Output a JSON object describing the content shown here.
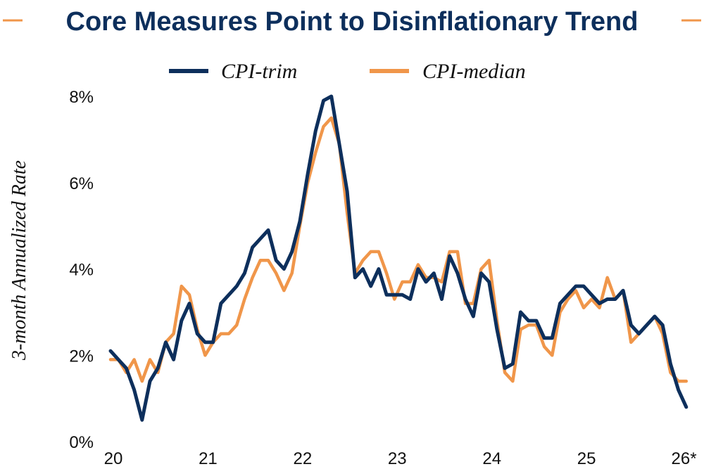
{
  "chart_data": {
    "type": "line",
    "title": "Core Measures Point to Disinflationary Trend",
    "ylabel": "3-month Annualized Rate",
    "xlabel": "",
    "ylim": [
      0,
      8
    ],
    "yticks": [
      "0%",
      "2%",
      "4%",
      "6%",
      "8%"
    ],
    "ytick_values": [
      0,
      2,
      4,
      6,
      8
    ],
    "x_start": 2020.0,
    "x_step": 0.0833333,
    "xticks": [
      "20",
      "21",
      "22",
      "23",
      "24",
      "25",
      "26*"
    ],
    "xtick_values": [
      2020,
      2021,
      2022,
      2023,
      2024,
      2025,
      2026
    ],
    "grid": false,
    "legend_position": "top-center",
    "series": [
      {
        "name": "CPI-trim",
        "color": "#0d2f5c",
        "values": [
          2.1,
          1.9,
          1.7,
          1.2,
          0.5,
          1.4,
          1.7,
          2.3,
          1.9,
          2.8,
          3.2,
          2.5,
          2.3,
          2.3,
          3.2,
          3.4,
          3.6,
          3.9,
          4.5,
          4.7,
          4.9,
          4.2,
          4.0,
          4.4,
          5.1,
          6.2,
          7.2,
          7.9,
          8.0,
          6.9,
          5.8,
          3.8,
          4.0,
          3.6,
          4.0,
          3.4,
          3.4,
          3.4,
          3.3,
          4.0,
          3.7,
          3.9,
          3.3,
          4.3,
          3.9,
          3.3,
          2.9,
          3.9,
          3.7,
          2.6,
          1.7,
          1.8,
          3.0,
          2.8,
          2.8,
          2.4,
          2.4,
          3.2,
          3.4,
          3.6,
          3.6,
          3.4,
          3.2,
          3.3,
          3.3,
          3.5,
          2.7,
          2.5,
          2.7,
          2.9,
          2.7,
          1.8,
          1.2,
          0.8
        ]
      },
      {
        "name": "CPI-median",
        "color": "#f0964a",
        "values": [
          1.9,
          1.9,
          1.6,
          1.9,
          1.4,
          1.9,
          1.6,
          2.3,
          2.5,
          3.6,
          3.4,
          2.6,
          2.0,
          2.3,
          2.5,
          2.5,
          2.7,
          3.3,
          3.8,
          4.2,
          4.2,
          3.9,
          3.5,
          3.9,
          5.0,
          6.0,
          6.7,
          7.3,
          7.5,
          6.9,
          5.3,
          3.9,
          4.2,
          4.4,
          4.4,
          3.9,
          3.3,
          3.7,
          3.7,
          4.1,
          3.8,
          3.8,
          3.7,
          4.4,
          4.4,
          3.2,
          3.2,
          4.0,
          4.2,
          2.8,
          1.6,
          1.4,
          2.6,
          2.7,
          2.7,
          2.2,
          2.0,
          3.0,
          3.3,
          3.5,
          3.1,
          3.3,
          3.1,
          3.8,
          3.3,
          3.5,
          2.3,
          2.5,
          2.7,
          2.9,
          2.5,
          1.6,
          1.4,
          1.4
        ]
      }
    ]
  }
}
